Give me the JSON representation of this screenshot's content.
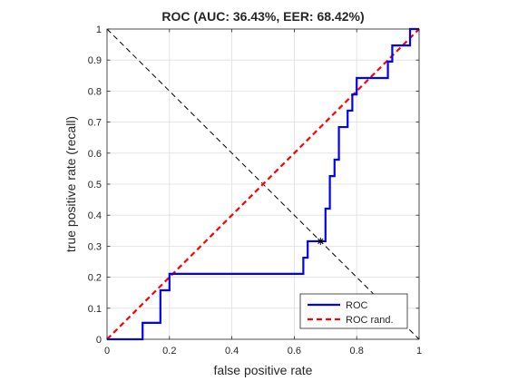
{
  "chart_data": {
    "type": "line",
    "title": "ROC (AUC: 36.43%, EER: 68.42%)",
    "xlabel": "false positive rate",
    "ylabel": "true positive rate (recall)",
    "xlim": [
      0,
      1
    ],
    "ylim": [
      0,
      1
    ],
    "grid": true,
    "legend_position": "bottom-right",
    "x_ticks": [
      "0",
      "0.2",
      "0.4",
      "0.6",
      "0.8",
      "1"
    ],
    "y_ticks": [
      "0",
      "0.1",
      "0.2",
      "0.3",
      "0.4",
      "0.5",
      "0.6",
      "0.7",
      "0.8",
      "0.9",
      "1"
    ],
    "series": [
      {
        "name": "ROC",
        "color": "#0000ff",
        "style": "solid",
        "x": [
          0,
          0.114,
          0.114,
          0.171,
          0.171,
          0.2,
          0.2,
          0.629,
          0.629,
          0.643,
          0.643,
          0.686,
          0.686,
          0.7,
          0.7,
          0.714,
          0.714,
          0.729,
          0.729,
          0.743,
          0.743,
          0.771,
          0.771,
          0.786,
          0.786,
          0.8,
          0.8,
          0.9,
          0.9,
          0.914,
          0.914,
          0.971,
          0.971,
          1
        ],
        "y": [
          0,
          0,
          0.053,
          0.053,
          0.158,
          0.158,
          0.211,
          0.211,
          0.263,
          0.263,
          0.316,
          0.316,
          0.316,
          0.316,
          0.421,
          0.421,
          0.526,
          0.526,
          0.579,
          0.579,
          0.684,
          0.684,
          0.737,
          0.737,
          0.789,
          0.789,
          0.842,
          0.842,
          0.895,
          0.895,
          0.947,
          0.947,
          1,
          1
        ]
      },
      {
        "name": "ROC rand.",
        "color": "#ff0000",
        "style": "dashed",
        "x": [
          0,
          1
        ],
        "y": [
          0,
          1
        ]
      }
    ],
    "eer_line": {
      "color": "#000000",
      "style": "dashed",
      "x": [
        0,
        1
      ],
      "y": [
        1,
        0
      ]
    },
    "eer_point": {
      "x": 0.684,
      "y": 0.316,
      "marker": "asterisk",
      "color": "#000000"
    }
  }
}
